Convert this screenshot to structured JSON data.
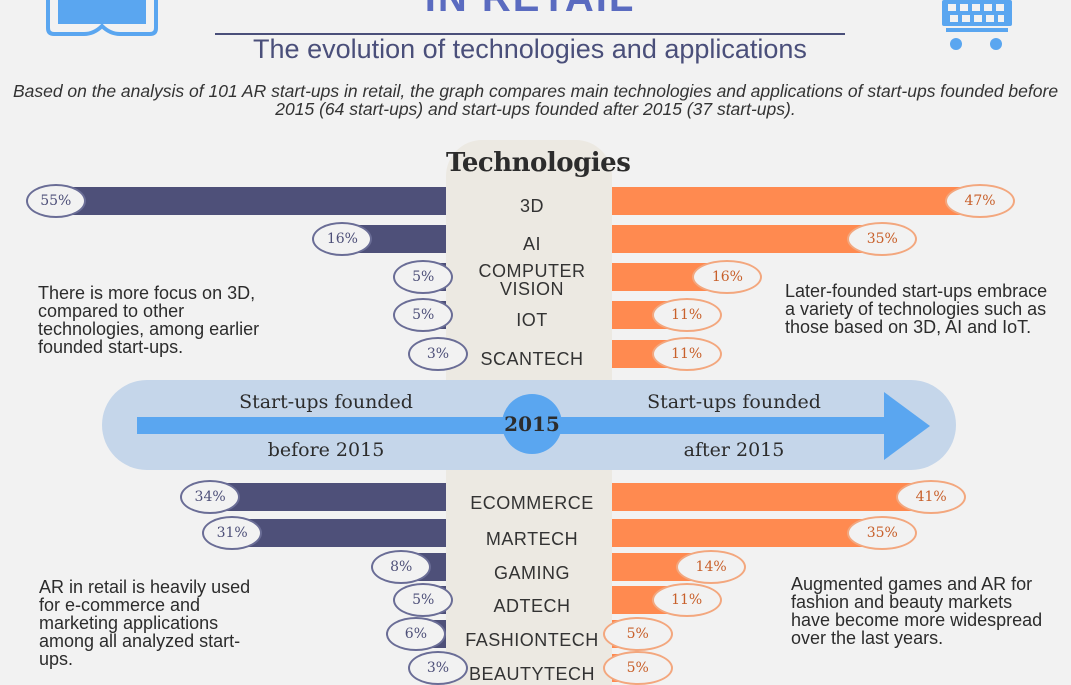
{
  "header": {
    "title": "IN RETAIL",
    "subtitle": "The evolution of technologies and applications",
    "intro": "Based on the analysis of 101 AR start-ups in retail, the graph compares main technologies and applications of start-ups founded before 2015 (64 start-ups) and start-ups founded after 2015 (37 start-ups)."
  },
  "colors": {
    "before": "#4e5079",
    "after": "#ff8a50",
    "timeline": "#5aa6f0"
  },
  "icons": {
    "left": "vr-headset-icon",
    "right": "shopping-cart-icon"
  },
  "timeline": {
    "left_top": "Start-ups founded",
    "left_bottom": "before 2015",
    "year": "2015",
    "right_top": "Start-ups founded",
    "right_bottom": "after 2015"
  },
  "notes": {
    "tech_left": "There is more focus on 3D, compared to other technologies, among earlier founded start-ups.",
    "tech_right": "Later-founded start-ups embrace a variety of technologies such as those based on 3D, AI and IoT.",
    "app_left": "AR in retail is heavily used for e-commerce and marketing applications among all analyzed start-ups.",
    "app_right": "Augmented games and AR for fashion and beauty markets have become more widespread over the last years."
  },
  "chart_data": [
    {
      "type": "bar",
      "title": "Technologies",
      "categories": [
        "3D",
        "AI",
        "COMPUTER VISION",
        "IOT",
        "SCANTECH"
      ],
      "series": [
        {
          "name": "before 2015",
          "values": [
            55,
            16,
            5,
            5,
            3
          ],
          "labels": [
            "55%",
            "16%",
            "5%",
            "5%",
            "3%"
          ]
        },
        {
          "name": "after 2015",
          "values": [
            47,
            35,
            16,
            11,
            11
          ],
          "labels": [
            "47%",
            "35%",
            "16%",
            "11%",
            "11%"
          ]
        }
      ]
    },
    {
      "type": "bar",
      "title": "",
      "categories": [
        "ECOMMERCE",
        "MARTECH",
        "GAMING",
        "ADTECH",
        "FASHIONTECH",
        "BEAUTYTECH"
      ],
      "series": [
        {
          "name": "before 2015",
          "values": [
            34,
            31,
            8,
            5,
            6,
            3
          ],
          "labels": [
            "34%",
            "31%",
            "8%",
            "5%",
            "6%",
            "3%"
          ]
        },
        {
          "name": "after 2015",
          "values": [
            41,
            35,
            14,
            11,
            5,
            5
          ],
          "labels": [
            "41%",
            "35%",
            "14%",
            "11%",
            "5%",
            "5%"
          ]
        }
      ]
    }
  ]
}
